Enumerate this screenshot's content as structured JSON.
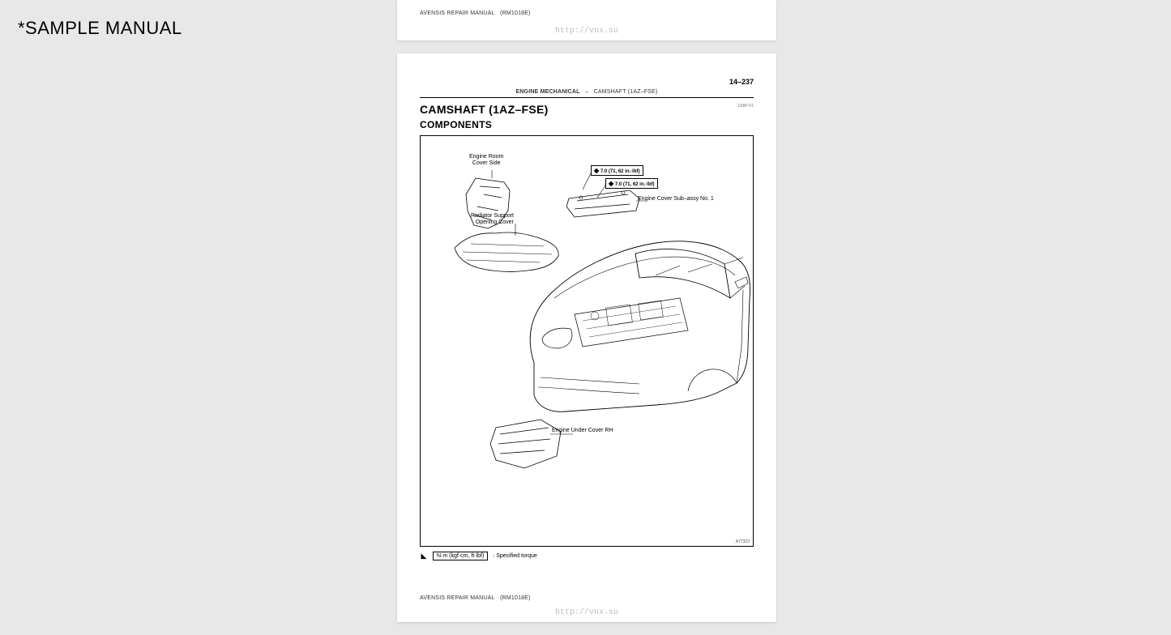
{
  "watermark": "*SAMPLE MANUAL",
  "footer": {
    "manual_title": "AVENSIS REPAIR MANUAL",
    "manual_code": "(RM1018E)",
    "url": "http://vnx.su"
  },
  "page": {
    "number": "14–237",
    "breadcrumb_section": "ENGINE MECHANICAL",
    "breadcrumb_sep": "–",
    "breadcrumb_topic": "CAMSHAFT (1AZ–FSE)",
    "title": "CAMSHAFT (1AZ–FSE)",
    "title_code": "12I8P-01",
    "subtitle": "COMPONENTS"
  },
  "diagram": {
    "labels": {
      "engine_room_cover_side": "Engine Room\nCover Side",
      "radiator_support": "Radiator Support\nOpening Cover",
      "engine_cover_sub": "Engine Cover Sub–assy No. 1",
      "engine_under_cover": "Engine Under Cover RH"
    },
    "torque1": "7.0 (71, 62 in.·lbf)",
    "torque2": "7.0 (71, 62 in.·lbf)",
    "ref": "A77322"
  },
  "legend": {
    "box_text": "N·m (kgf·cm, ft·lbf)",
    "desc": ": Specified torque"
  }
}
